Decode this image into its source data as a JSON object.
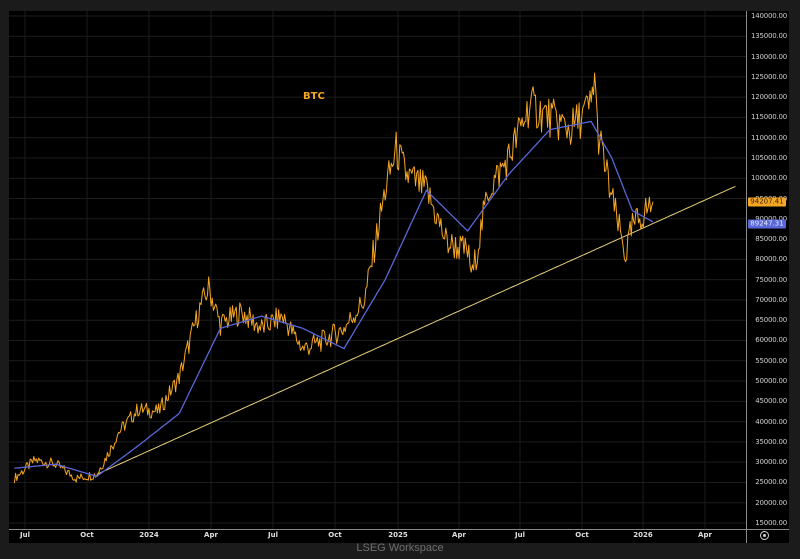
{
  "chart_data": {
    "type": "line",
    "title": "BTC",
    "series_label": "BTC",
    "xlabel": "",
    "ylabel": "",
    "ylim": [
      15000,
      140000
    ],
    "grid": true,
    "legend_position": "inline-top",
    "x_ticks": [
      "Jul",
      "Oct",
      "2024",
      "Apr",
      "Jul",
      "Oct",
      "2025",
      "Apr",
      "Jul",
      "Oct",
      "2026",
      "Apr"
    ],
    "y_ticks": [
      "140000.00",
      "135000.00",
      "130000.00",
      "125000.00",
      "120000.00",
      "115000.00",
      "110000.00",
      "105000.00",
      "100000.00",
      "95000.00",
      "90000.00",
      "85000.00",
      "80000.00",
      "75000.00",
      "70000.00",
      "65000.00",
      "60000.00",
      "55000.00",
      "50000.00",
      "45000.00",
      "40000.00",
      "35000.00",
      "30000.00",
      "25000.00",
      "20000.00",
      "15000.00"
    ],
    "series": [
      {
        "name": "BTC",
        "color": "#f5a623",
        "x": [
          "2023-06",
          "2023-07",
          "2023-08",
          "2023-09",
          "2023-10",
          "2023-10-25",
          "2023-11",
          "2023-12",
          "2024-01",
          "2024-02",
          "2024-03",
          "2024-03-14",
          "2024-04",
          "2024-05",
          "2024-06",
          "2024-07",
          "2024-08",
          "2024-09",
          "2024-10",
          "2024-11",
          "2024-12",
          "2024-12-17",
          "2025-01",
          "2025-02",
          "2025-03",
          "2025-04",
          "2025-04-08",
          "2025-05",
          "2025-06",
          "2025-07",
          "2025-08",
          "2025-09",
          "2025-10",
          "2025-10-06",
          "2025-10-10",
          "2025-11",
          "2025-11-21",
          "2025-12",
          "2026-01"
        ],
        "values": [
          26000,
          30500,
          29500,
          26000,
          27000,
          34500,
          37000,
          43000,
          42500,
          51000,
          68000,
          73000,
          64000,
          67000,
          63000,
          66000,
          58000,
          60000,
          63000,
          70000,
          97000,
          107000,
          101000,
          97000,
          84000,
          82000,
          76000,
          97000,
          105000,
          118000,
          115000,
          112000,
          118000,
          126000,
          112000,
          95000,
          81000,
          88000,
          94207.41
        ]
      },
      {
        "name": "Moving Average",
        "color": "#5a67d8",
        "x": [
          "2023-06",
          "2023-08",
          "2023-10",
          "2023-12",
          "2024-02",
          "2024-04",
          "2024-06",
          "2024-08",
          "2024-10",
          "2024-12",
          "2025-02",
          "2025-04",
          "2025-06",
          "2025-08",
          "2025-10",
          "2025-11",
          "2025-12",
          "2026-01"
        ],
        "values": [
          28500,
          29500,
          26500,
          34000,
          42000,
          63000,
          66000,
          63000,
          58000,
          75000,
          97000,
          87000,
          101000,
          112000,
          114000,
          105000,
          92000,
          89247.31
        ]
      },
      {
        "name": "Trend line",
        "color": "#e8d27a",
        "x": [
          "2023-10",
          "2026-05"
        ],
        "values": [
          27000,
          98000
        ]
      }
    ],
    "last_values": {
      "price": "94207.41",
      "moving_average": "89247.31"
    }
  },
  "footer": {
    "watermark": "LSEG Workspace"
  },
  "colors": {
    "price": "#f5a623",
    "moving_average": "#5a67d8",
    "trend": "#e8d27a",
    "background": "#000000"
  }
}
